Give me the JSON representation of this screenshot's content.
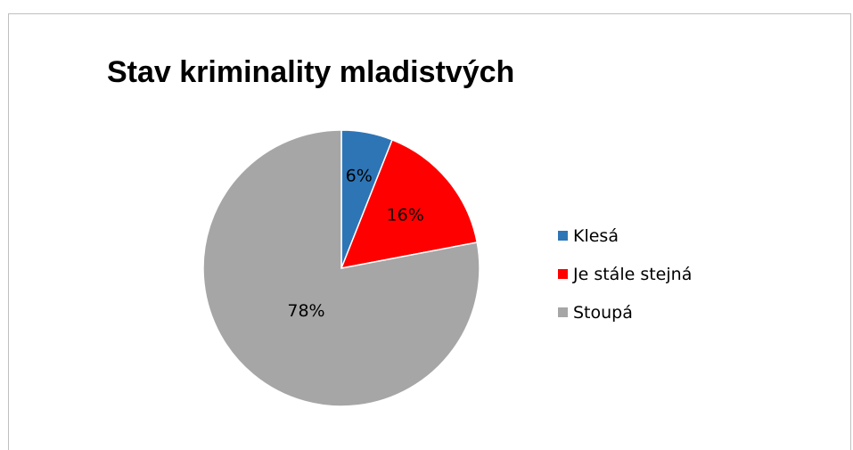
{
  "chart_data": {
    "type": "pie",
    "title": "Stav kriminality mladistvých",
    "categories": [
      "Klesá",
      "Je stále stejná",
      "Stoupá"
    ],
    "values": [
      6,
      16,
      78
    ],
    "labels": [
      "6%",
      "16%",
      "78%"
    ],
    "colors": [
      "#2e75b6",
      "#ff0000",
      "#a6a6a6"
    ],
    "legend_position": "right",
    "start_angle": "12 o'clock, clockwise"
  }
}
